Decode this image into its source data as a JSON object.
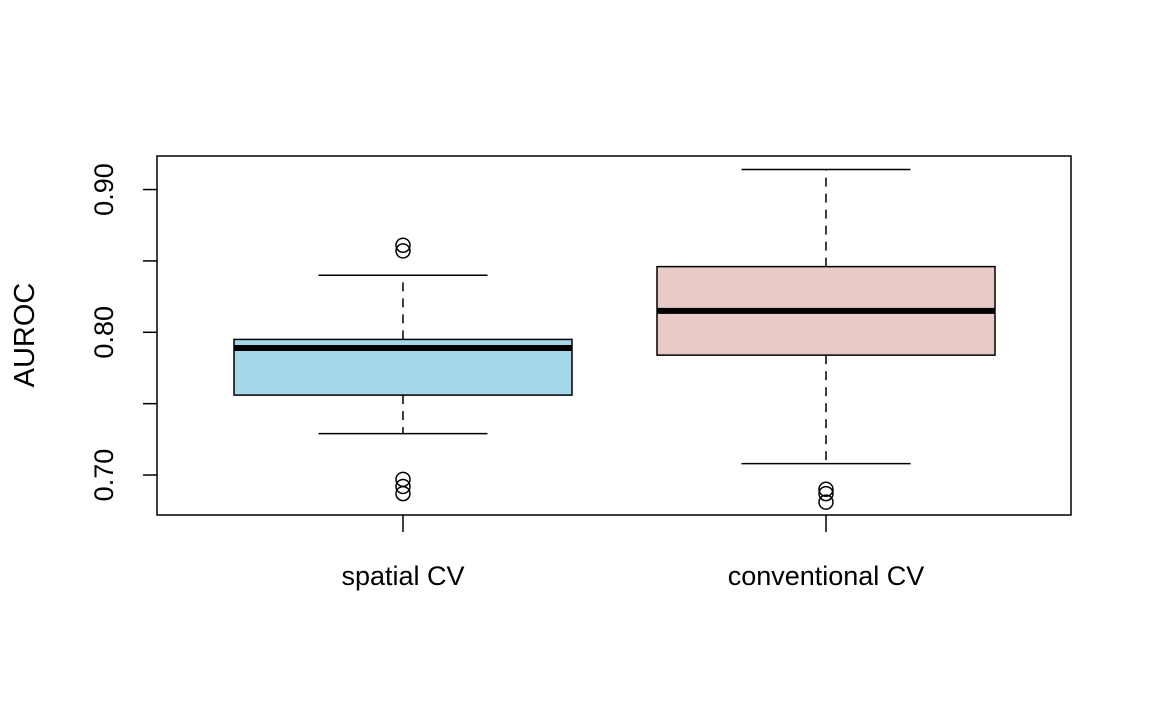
{
  "chart_data": {
    "type": "boxplot",
    "title": "",
    "xlabel": "",
    "ylabel": "AUROC",
    "ylim": [
      0.672,
      0.9235
    ],
    "yticks": [
      0.7,
      0.75,
      0.8,
      0.85,
      0.9
    ],
    "ytick_labels": [
      "0.70",
      "",
      "0.80",
      "",
      "0.90"
    ],
    "grid": false,
    "categories": [
      "spatial CV",
      "conventional CV"
    ],
    "boxes": [
      {
        "label": "spatial CV",
        "color": "#a6d8ea",
        "whisker_low": 0.729,
        "q1": 0.756,
        "median": 0.789,
        "q3": 0.795,
        "whisker_high": 0.84,
        "outliers": [
          0.697,
          0.692,
          0.687,
          0.857,
          0.861
        ]
      },
      {
        "label": "conventional CV",
        "color": "#e8cbc6",
        "whisker_low": 0.708,
        "q1": 0.784,
        "median": 0.815,
        "q3": 0.846,
        "whisker_high": 0.914,
        "outliers": [
          0.69,
          0.687,
          0.681
        ]
      }
    ]
  }
}
